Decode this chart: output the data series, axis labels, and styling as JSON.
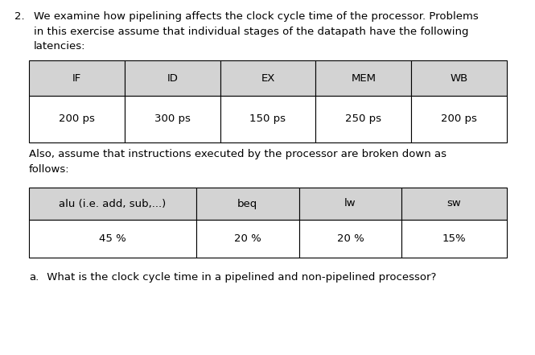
{
  "title_number": "2.",
  "intro_text": "We examine how pipelining affects the clock cycle time of the processor. Problems\nin this exercise assume that individual stages of the datapath have the following\nlatencies:",
  "table1_headers": [
    "IF",
    "ID",
    "EX",
    "MEM",
    "WB"
  ],
  "table1_values": [
    "200 ps",
    "300 ps",
    "150 ps",
    "250 ps",
    "200 ps"
  ],
  "middle_text": "Also, assume that instructions executed by the processor are broken down as\nfollows:",
  "table2_headers": [
    "alu (i.e. add, sub,...)",
    "beq",
    "lw",
    "sw"
  ],
  "table2_values": [
    "45 %",
    "20 %",
    "20 %",
    "15%"
  ],
  "question_label": "a.",
  "question_text": " What is the clock cycle time in a pipelined and non-pipelined processor?",
  "header_bg": "#d3d3d3",
  "table_bg": "#ffffff",
  "text_color": "#000000",
  "font_size": 9.5,
  "bg_color": "#ffffff",
  "fig_width": 6.65,
  "fig_height": 4.41,
  "dpi": 100
}
